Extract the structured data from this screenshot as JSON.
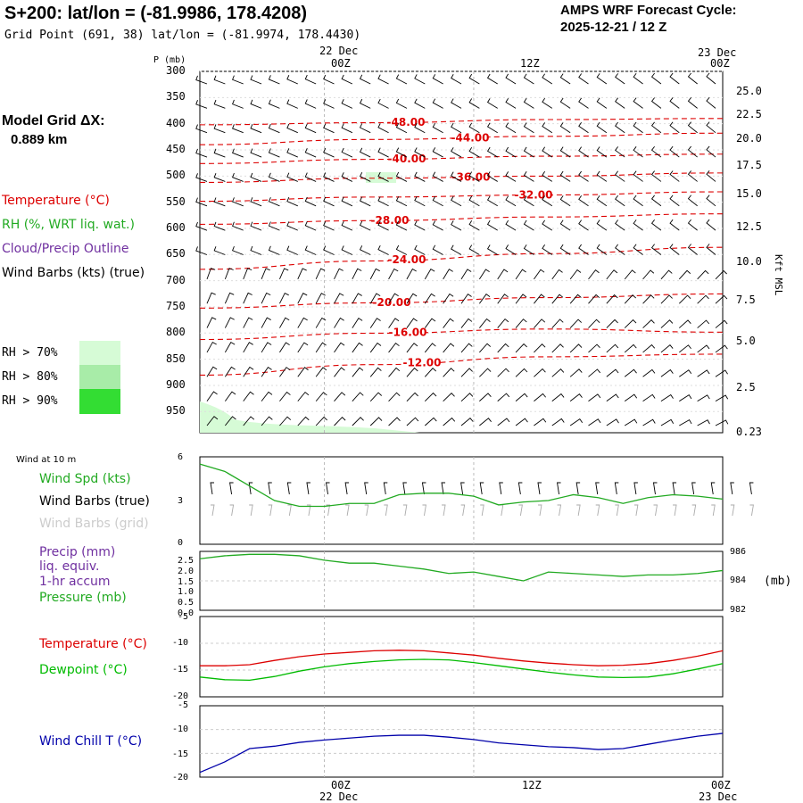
{
  "header": {
    "station_line": "S+200: lat/lon = (-81.9986, 178.4208)",
    "grid_line": "Grid Point (691, 38) lat/lon = (-81.9974, 178.4430)",
    "cycle_title": "AMPS WRF Forecast Cycle:",
    "cycle_value": "2025-12-21 / 12  Z"
  },
  "time_axis": {
    "top_dates": [
      "22 Dec",
      "23 Dec"
    ],
    "ticks": [
      "00Z",
      "12Z",
      "00Z"
    ],
    "bottom_ticks": [
      "00Z",
      "12Z",
      "00Z"
    ],
    "bottom_dates": [
      "22 Dec",
      "23 Dec"
    ]
  },
  "left_legend": {
    "model_grid_label": "Model Grid ΔX:",
    "model_grid_value": "0.889 km",
    "temperature": "Temperature (°C)",
    "rh": "RH (%, WRT liq. wat.)",
    "cloud": "Cloud/Precip Outline",
    "wind_barbs": "Wind Barbs (kts) (true)",
    "rh70": "RH > 70%",
    "rh80": "RH > 80%",
    "rh90": "RH > 90%"
  },
  "colors": {
    "temperature": "#dd0000",
    "rh": "#22aa22",
    "cloud": "#7030a0",
    "rh70": "#d6fbd6",
    "rh80": "#a8eca8",
    "rh90": "#33dd33",
    "dewpoint": "#00bb00",
    "windchill": "#0000aa",
    "grid": "#bbbbbb"
  },
  "panels": {
    "cross_section": {
      "p_label": "P (mb)",
      "pressure_ticks": [
        "300",
        "350",
        "400",
        "450",
        "500",
        "550",
        "600",
        "650",
        "700",
        "750",
        "800",
        "850",
        "900",
        "950"
      ],
      "kft_ticks": [
        "25.0",
        "22.5",
        "20.0",
        "17.5",
        "15.0",
        "12.5",
        "10.0",
        "7.5",
        "5.0",
        "2.5",
        "0.23"
      ],
      "kft_label": "Kft MSL",
      "isotherm_labels": [
        "-48.00",
        "-44.00",
        "-40.00",
        "-36.00",
        "-32.00",
        "-28.00",
        "-24.00",
        "-20.00",
        "-16.00",
        "-12.00"
      ]
    },
    "wind": {
      "title": "Wind at 10 m",
      "spd_label": "Wind Spd (kts)",
      "barbs_true": "Wind Barbs (true)",
      "barbs_grid": "Wind Barbs (grid)",
      "yticks": [
        "6",
        "3",
        "0"
      ]
    },
    "precip": {
      "label1": "Precip (mm)",
      "label2": "liq. equiv.",
      "label3": "1-hr accum",
      "label4": "Pressure (mb)",
      "left_ticks": [
        "2.5",
        "2.0",
        "1.5",
        "1.0",
        "0.5",
        "0.0"
      ],
      "right_ticks": [
        "986",
        "984",
        "982"
      ],
      "unit": "(mb)"
    },
    "temp": {
      "t_label": "Temperature (°C)",
      "td_label": "Dewpoint (°C)",
      "yticks": [
        "-5",
        "-10",
        "-15",
        "-20"
      ]
    },
    "windchill": {
      "label": "Wind Chill T (°C)",
      "yticks": [
        "-5",
        "-10",
        "-15",
        "-20"
      ]
    }
  },
  "chart_data": [
    {
      "type": "line",
      "title": "Wind at 10 m",
      "x_hours": [
        0,
        2,
        4,
        6,
        8,
        10,
        12,
        14,
        16,
        18,
        20,
        22,
        24,
        26,
        28,
        30,
        32,
        34,
        36,
        38,
        40,
        42
      ],
      "series": [
        {
          "name": "Wind Spd (kts)",
          "values": [
            5.5,
            5.0,
            4.0,
            3.0,
            2.6,
            2.6,
            2.8,
            2.8,
            3.4,
            3.5,
            3.5,
            3.3,
            2.7,
            2.9,
            3.0,
            3.4,
            3.2,
            2.8,
            3.2,
            3.4,
            3.3,
            3.1
          ]
        }
      ],
      "ylim": [
        0,
        6
      ]
    },
    {
      "type": "line",
      "title": "Pressure (mb)",
      "x_hours": [
        0,
        2,
        4,
        6,
        8,
        10,
        12,
        14,
        16,
        18,
        20,
        22,
        24,
        26,
        28,
        30,
        32,
        34,
        36,
        38,
        40,
        42
      ],
      "series": [
        {
          "name": "Pressure (mb)",
          "values": [
            985.5,
            985.7,
            985.8,
            985.8,
            985.7,
            985.4,
            985.2,
            985.2,
            985.0,
            984.8,
            984.5,
            984.6,
            984.3,
            984.0,
            984.6,
            984.5,
            984.4,
            984.3,
            984.4,
            984.4,
            984.5,
            984.7
          ]
        }
      ],
      "ylim": [
        982,
        986
      ]
    },
    {
      "type": "line",
      "title": "Temperature / Dewpoint",
      "x_hours": [
        0,
        2,
        4,
        6,
        8,
        10,
        12,
        14,
        16,
        18,
        20,
        22,
        24,
        26,
        28,
        30,
        32,
        34,
        36,
        38,
        40,
        42
      ],
      "series": [
        {
          "name": "Temperature (°C)",
          "values": [
            -14.2,
            -14.2,
            -14.0,
            -13.2,
            -12.5,
            -12.0,
            -11.7,
            -11.4,
            -11.3,
            -11.4,
            -11.8,
            -12.2,
            -12.8,
            -13.3,
            -13.7,
            -14.0,
            -14.2,
            -14.1,
            -13.8,
            -13.2,
            -12.4,
            -11.4
          ]
        },
        {
          "name": "Dewpoint (°C)",
          "values": [
            -16.3,
            -16.8,
            -16.9,
            -16.2,
            -15.2,
            -14.4,
            -13.8,
            -13.4,
            -13.1,
            -13.0,
            -13.1,
            -13.6,
            -14.2,
            -14.8,
            -15.4,
            -15.9,
            -16.3,
            -16.4,
            -16.3,
            -15.7,
            -14.8,
            -13.8
          ]
        }
      ],
      "ylim": [
        -20,
        -5
      ]
    },
    {
      "type": "line",
      "title": "Wind Chill T",
      "x_hours": [
        0,
        2,
        4,
        6,
        8,
        10,
        12,
        14,
        16,
        18,
        20,
        22,
        24,
        26,
        28,
        30,
        32,
        34,
        36,
        38,
        40,
        42
      ],
      "series": [
        {
          "name": "Wind Chill T (°C)",
          "values": [
            -19.0,
            -16.8,
            -14.0,
            -13.5,
            -12.7,
            -12.2,
            -11.8,
            -11.4,
            -11.2,
            -11.2,
            -11.6,
            -12.1,
            -12.8,
            -13.2,
            -13.6,
            -13.8,
            -14.2,
            -14.0,
            -13.1,
            -12.2,
            -11.4,
            -10.8
          ]
        }
      ],
      "ylim": [
        -20,
        -5
      ]
    },
    {
      "type": "line",
      "title": "Isotherms (cross-section)",
      "x_hours": [
        0,
        14,
        28,
        42
      ],
      "series": [
        {
          "name": "-48",
          "pressure": [
            402,
            398,
            392,
            390
          ]
        },
        {
          "name": "-44",
          "pressure": [
            440,
            430,
            424,
            418
          ]
        },
        {
          "name": "-40",
          "pressure": [
            476,
            468,
            462,
            458
          ]
        },
        {
          "name": "-36",
          "pressure": [
            512,
            504,
            500,
            494
          ]
        },
        {
          "name": "-32",
          "pressure": [
            548,
            540,
            536,
            530
          ]
        },
        {
          "name": "-28",
          "pressure": [
            592,
            585,
            578,
            572
          ]
        },
        {
          "name": "-24",
          "pressure": [
            678,
            662,
            648,
            636
          ]
        },
        {
          "name": "-20",
          "pressure": [
            752,
            742,
            732,
            725
          ]
        },
        {
          "name": "-16",
          "pressure": [
            812,
            800,
            792,
            798
          ]
        },
        {
          "name": "-12",
          "pressure": [
            880,
            860,
            845,
            840
          ]
        }
      ],
      "ylim": [
        300,
        990
      ]
    }
  ]
}
